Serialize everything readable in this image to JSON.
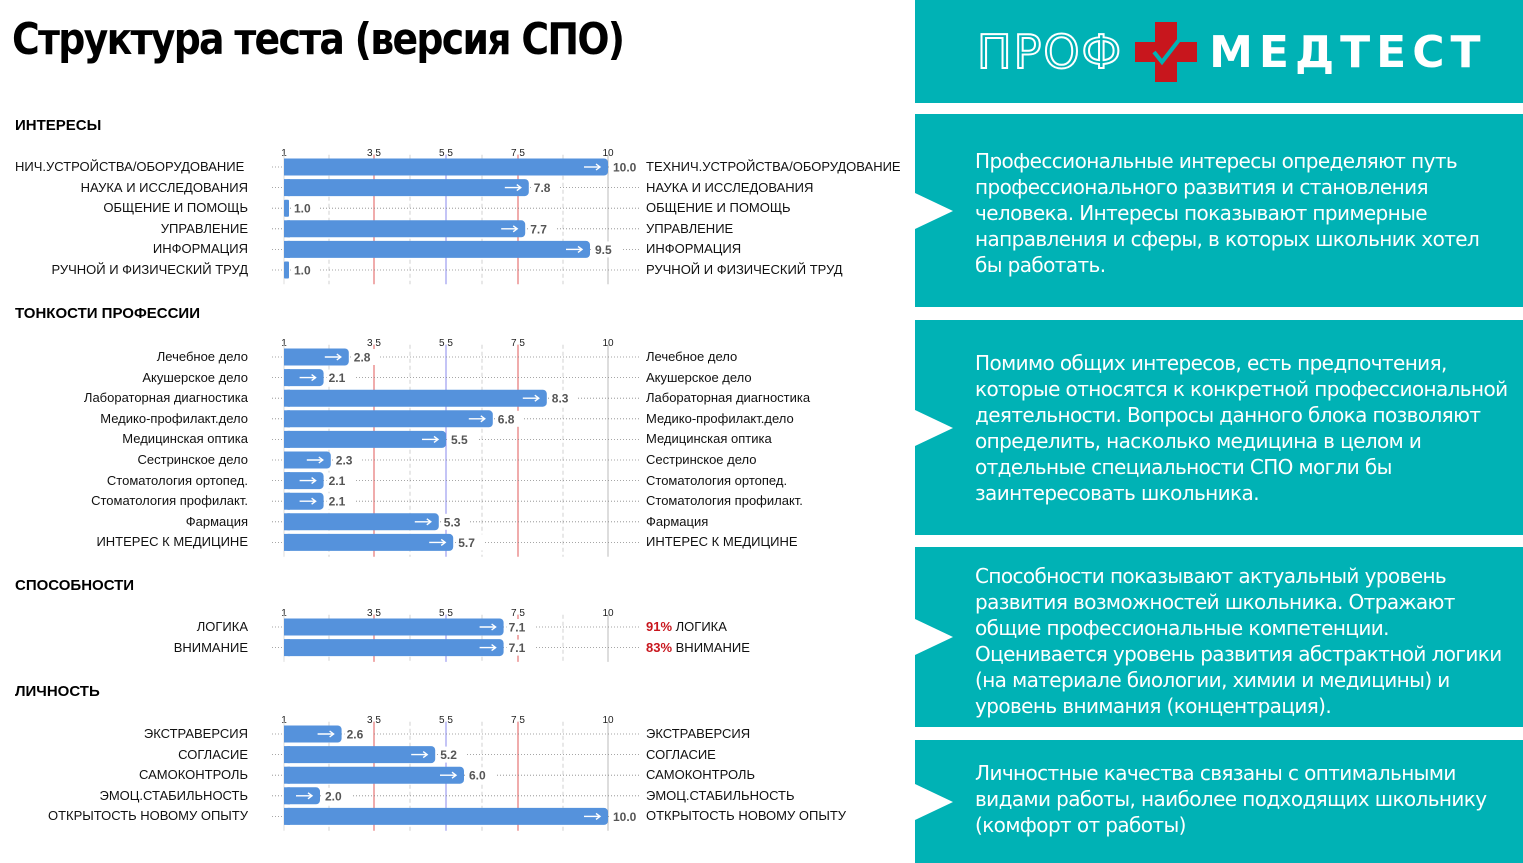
{
  "page_title": "Структура теста (версия СПО)",
  "logo": {
    "left_text": "ПРОФ",
    "right_text": "МЕДТЕСТ",
    "cross_color": "#c8161d",
    "bg_color": "#00b2b5"
  },
  "colors": {
    "bar": "#5592dc",
    "red_line": "#e05a5a",
    "blue_line": "#8888ee",
    "teal": "#00b2b5",
    "percent": "#c8161d"
  },
  "chart_data": [
    {
      "type": "bar",
      "title": "ИНТЕРЕСЫ",
      "xlim": [
        1,
        10
      ],
      "ticks": [
        "1",
        "3.5",
        "5.5",
        "7.5",
        "10"
      ],
      "categories": [
        "ТЕХНИЧ.УСТРОЙСТВА/ОБОРУДОВАНИЕ",
        "НАУКА И ИССЛЕДОВАНИЯ",
        "ОБЩЕНИЕ И ПОМОЩЬ",
        "УПРАВЛЕНИЕ",
        "ИНФОРМАЦИЯ",
        "РУЧНОЙ И ФИЗИЧЕСКИЙ ТРУД"
      ],
      "left_labels": [
        "НИЧ.УСТРОЙСТВА/ОБОРУДОВАНИЕ",
        "НАУКА И ИССЛЕДОВАНИЯ",
        "ОБЩЕНИЕ И ПОМОЩЬ",
        "УПРАВЛЕНИЕ",
        "ИНФОРМАЦИЯ",
        "РУЧНОЙ И ФИЗИЧЕСКИЙ ТРУД"
      ],
      "values": [
        10.0,
        7.8,
        1.0,
        7.7,
        9.5,
        1.0
      ],
      "value_labels": [
        "10.0",
        "7.8",
        "1.0",
        "7.7",
        "9.5",
        "1.0"
      ],
      "percents": [
        "",
        "",
        "",
        "",
        "",
        ""
      ]
    },
    {
      "type": "bar",
      "title": "ТОНКОСТИ ПРОФЕССИИ",
      "xlim": [
        1,
        10
      ],
      "ticks": [
        "1",
        "3.5",
        "5.5",
        "7.5",
        "10"
      ],
      "categories": [
        "Лечебное дело",
        "Акушерское дело",
        "Лабораторная диагностика",
        "Медико-профилакт.дело",
        "Медицинская оптика",
        "Сестринское дело",
        "Стоматология ортопед.",
        "Стоматология профилакт.",
        "Фармация",
        "ИНТЕРЕС К МЕДИЦИНЕ"
      ],
      "left_labels": [
        "Лечебное дело",
        "Акушерское дело",
        "Лабораторная диагностика",
        "Медико-профилакт.дело",
        "Медицинская оптика",
        "Сестринское дело",
        "Стоматология ортопед.",
        "Стоматология профилакт.",
        "Фармация",
        "ИНТЕРЕС К МЕДИЦИНЕ"
      ],
      "values": [
        2.8,
        2.1,
        8.3,
        6.8,
        5.5,
        2.3,
        2.1,
        2.1,
        5.3,
        5.7
      ],
      "value_labels": [
        "2.8",
        "2.1",
        "8.3",
        "6.8",
        "5.5",
        "2.3",
        "2.1",
        "2.1",
        "5.3",
        "5.7"
      ],
      "percents": [
        "",
        "",
        "",
        "",
        "",
        "",
        "",
        "",
        "",
        ""
      ]
    },
    {
      "type": "bar",
      "title": "СПОСОБНОСТИ",
      "xlim": [
        1,
        10
      ],
      "ticks": [
        "1",
        "3.5",
        "5.5",
        "7.5",
        "10"
      ],
      "categories": [
        "ЛОГИКА",
        "ВНИМАНИЕ"
      ],
      "left_labels": [
        "ЛОГИКА",
        "ВНИМАНИЕ"
      ],
      "values": [
        7.1,
        7.1
      ],
      "value_labels": [
        "7.1",
        "7.1"
      ],
      "percents": [
        "91%",
        "83%"
      ]
    },
    {
      "type": "bar",
      "title": "ЛИЧНОСТЬ",
      "xlim": [
        1,
        10
      ],
      "ticks": [
        "1",
        "3.5",
        "5.5",
        "7.5",
        "10"
      ],
      "categories": [
        "ЭКСТРАВЕРСИЯ",
        "СОГЛАСИЕ",
        "САМОКОНТРОЛЬ",
        "ЭМОЦ.СТАБИЛЬНОСТЬ",
        "ОТКРЫТОСТЬ НОВОМУ ОПЫТУ"
      ],
      "left_labels": [
        "ЭКСТРАВЕРСИЯ",
        "СОГЛАСИЕ",
        "САМОКОНТРОЛЬ",
        "ЭМОЦ.СТАБИЛЬНОСТЬ",
        "ОТКРЫТОСТЬ НОВОМУ ОПЫТУ"
      ],
      "values": [
        2.6,
        5.2,
        6.0,
        2.0,
        10.0
      ],
      "value_labels": [
        "2.6",
        "5.2",
        "6.0",
        "2.0",
        "10.0"
      ],
      "percents": [
        "",
        "",
        "",
        "",
        ""
      ]
    }
  ],
  "descriptions": [
    "Профессиональные интересы определяют путь профессионального развития и становления человека. Интересы показывают примерные направления и сферы, в которых школьник хотел бы работать.",
    "Помимо общих интересов, есть предпочтения, которые относятся к конкретной профессиональной деятельности. Вопросы данного блока позволяют определить, насколько медицина в целом и отдельные специальности СПО могли бы заинтересовать школьника.",
    "Способности показывают актуальный уровень развития возможностей школьника. Отражают общие профессиональные компетенции. Оценивается уровень развития абстрактной логики (на материале биологии, химии и медицины) и уровень внимания (концентрация).",
    "Личностные качества связаны с оптимальными видами работы, наиболее подходящих школьнику (комфорт от работы)"
  ]
}
